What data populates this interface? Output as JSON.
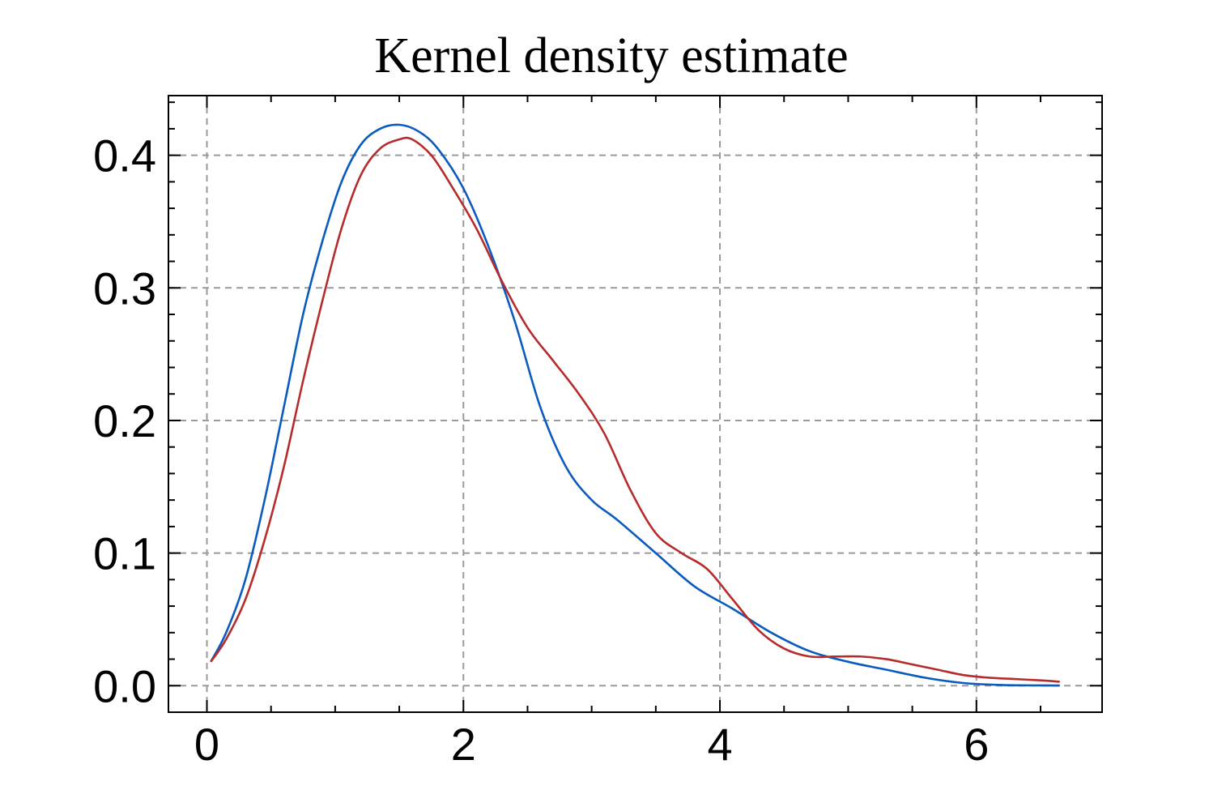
{
  "chart_data": {
    "type": "line",
    "title": "Kernel density estimate",
    "xlabel": "",
    "ylabel": "",
    "xlim": [
      -0.3,
      6.98
    ],
    "ylim": [
      -0.02,
      0.445
    ],
    "xticks": [
      0,
      2,
      4,
      6
    ],
    "xtick_labels": [
      "0",
      "2",
      "4",
      "6"
    ],
    "yticks": [
      0.0,
      0.1,
      0.2,
      0.3,
      0.4
    ],
    "ytick_labels": [
      "0.0",
      "0.1",
      "0.2",
      "0.3",
      "0.4"
    ],
    "grid": true,
    "legend": "none",
    "series": [
      {
        "color": "#0a5bbd",
        "x": [
          0.03,
          0.15,
          0.3,
          0.45,
          0.6,
          0.75,
          0.9,
          1.05,
          1.2,
          1.35,
          1.5,
          1.65,
          1.8,
          2.0,
          2.2,
          2.4,
          2.6,
          2.8,
          3.0,
          3.2,
          3.5,
          3.8,
          4.1,
          4.4,
          4.7,
          5.0,
          5.3,
          5.6,
          5.9,
          6.2,
          6.5,
          6.65
        ],
        "y": [
          0.018,
          0.04,
          0.08,
          0.14,
          0.21,
          0.28,
          0.335,
          0.38,
          0.408,
          0.42,
          0.423,
          0.418,
          0.405,
          0.375,
          0.33,
          0.275,
          0.21,
          0.165,
          0.14,
          0.125,
          0.1,
          0.075,
          0.058,
          0.04,
          0.026,
          0.018,
          0.012,
          0.006,
          0.002,
          0.0005,
          0.0002,
          0.0001
        ]
      },
      {
        "color": "#b52c2c",
        "x": [
          0.03,
          0.15,
          0.3,
          0.45,
          0.6,
          0.75,
          0.9,
          1.05,
          1.2,
          1.35,
          1.5,
          1.6,
          1.75,
          1.9,
          2.1,
          2.3,
          2.5,
          2.7,
          2.9,
          3.1,
          3.3,
          3.5,
          3.7,
          3.9,
          4.1,
          4.3,
          4.5,
          4.7,
          4.9,
          5.1,
          5.3,
          5.5,
          5.7,
          5.9,
          6.1,
          6.3,
          6.5,
          6.65
        ],
        "y": [
          0.018,
          0.035,
          0.065,
          0.11,
          0.165,
          0.23,
          0.29,
          0.345,
          0.385,
          0.405,
          0.412,
          0.412,
          0.4,
          0.378,
          0.345,
          0.305,
          0.27,
          0.245,
          0.22,
          0.19,
          0.148,
          0.115,
          0.1,
          0.088,
          0.065,
          0.042,
          0.028,
          0.022,
          0.022,
          0.022,
          0.02,
          0.016,
          0.012,
          0.008,
          0.006,
          0.005,
          0.004,
          0.003
        ]
      }
    ]
  }
}
